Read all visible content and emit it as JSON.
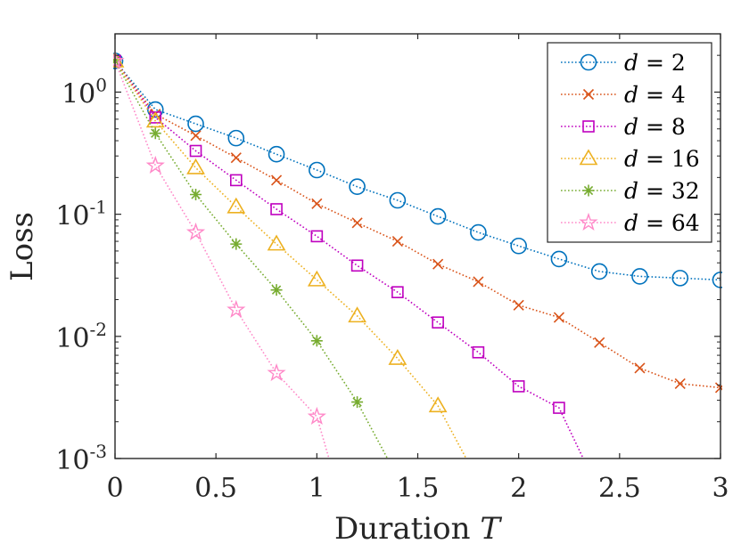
{
  "chart_data": {
    "type": "line",
    "y_scale": "log",
    "xlim": [
      0,
      3
    ],
    "ylim": [
      0.001,
      3
    ],
    "xlabel": "Duration",
    "xlabel_symbol": "T",
    "ylabel": "Loss",
    "x_ticks": [
      {
        "value": 0,
        "label": "0"
      },
      {
        "value": 0.5,
        "label": "0.5"
      },
      {
        "value": 1,
        "label": "1"
      },
      {
        "value": 1.5,
        "label": "1.5"
      },
      {
        "value": 2,
        "label": "2"
      },
      {
        "value": 2.5,
        "label": "2.5"
      },
      {
        "value": 3,
        "label": "3"
      }
    ],
    "y_ticks": [
      {
        "value": 0.001,
        "base": "10",
        "exp": "-3"
      },
      {
        "value": 0.01,
        "base": "10",
        "exp": "-2"
      },
      {
        "value": 0.1,
        "base": "10",
        "exp": "-1"
      },
      {
        "value": 1,
        "base": "10",
        "exp": "0"
      }
    ],
    "legend_position": "top-right",
    "series": [
      {
        "name": "d = 2",
        "legend_var": "d",
        "legend_value": "= 2",
        "color": "#0072BD",
        "marker": "circle",
        "x": [
          0,
          0.2,
          0.4,
          0.6,
          0.8,
          1.0,
          1.2,
          1.4,
          1.6,
          1.8,
          2.0,
          2.2,
          2.4,
          2.6,
          2.8,
          3.0
        ],
        "y": [
          1.8,
          0.72,
          0.55,
          0.42,
          0.31,
          0.23,
          0.168,
          0.13,
          0.096,
          0.071,
          0.055,
          0.043,
          0.034,
          0.031,
          0.03,
          0.029
        ]
      },
      {
        "name": "d = 4",
        "legend_var": "d",
        "legend_value": "= 4",
        "color": "#D95319",
        "marker": "x",
        "x": [
          0,
          0.2,
          0.4,
          0.6,
          0.8,
          1.0,
          1.2,
          1.4,
          1.6,
          1.8,
          2.0,
          2.2,
          2.4,
          2.6,
          2.8,
          3.0
        ],
        "y": [
          1.8,
          0.66,
          0.44,
          0.29,
          0.19,
          0.122,
          0.085,
          0.06,
          0.039,
          0.028,
          0.018,
          0.0143,
          0.0089,
          0.0055,
          0.0041,
          0.0038
        ]
      },
      {
        "name": "d = 8",
        "legend_var": "d",
        "legend_value": "= 8",
        "color": "#BF00BF",
        "marker": "square",
        "x": [
          0,
          0.2,
          0.4,
          0.6,
          0.8,
          1.0,
          1.2,
          1.4,
          1.6,
          1.8,
          2.0,
          2.2,
          2.32
        ],
        "y": [
          1.8,
          0.62,
          0.33,
          0.19,
          0.11,
          0.066,
          0.038,
          0.023,
          0.013,
          0.0074,
          0.0039,
          0.0026,
          0.001
        ]
      },
      {
        "name": "d = 16",
        "legend_var": "d",
        "legend_value": "= 16",
        "color": "#EDB120",
        "marker": "triangle",
        "x": [
          0,
          0.2,
          0.4,
          0.6,
          0.8,
          1.0,
          1.2,
          1.4,
          1.6,
          1.74
        ],
        "y": [
          1.8,
          0.58,
          0.24,
          0.115,
          0.057,
          0.029,
          0.0147,
          0.0066,
          0.0027,
          0.001
        ]
      },
      {
        "name": "d = 32",
        "legend_var": "d",
        "legend_value": "= 32",
        "color": "#77AC30",
        "marker": "asterisk",
        "x": [
          0,
          0.2,
          0.4,
          0.6,
          0.8,
          1.0,
          1.2,
          1.35
        ],
        "y": [
          1.8,
          0.46,
          0.145,
          0.057,
          0.024,
          0.0092,
          0.0029,
          0.001
        ]
      },
      {
        "name": "d = 64",
        "legend_var": "d",
        "legend_value": "= 64",
        "color": "#FF88C8",
        "marker": "pentagram",
        "x": [
          0,
          0.2,
          0.4,
          0.6,
          0.8,
          1.0,
          1.06
        ],
        "y": [
          1.8,
          0.25,
          0.071,
          0.0165,
          0.005,
          0.0022,
          0.001
        ]
      }
    ]
  }
}
